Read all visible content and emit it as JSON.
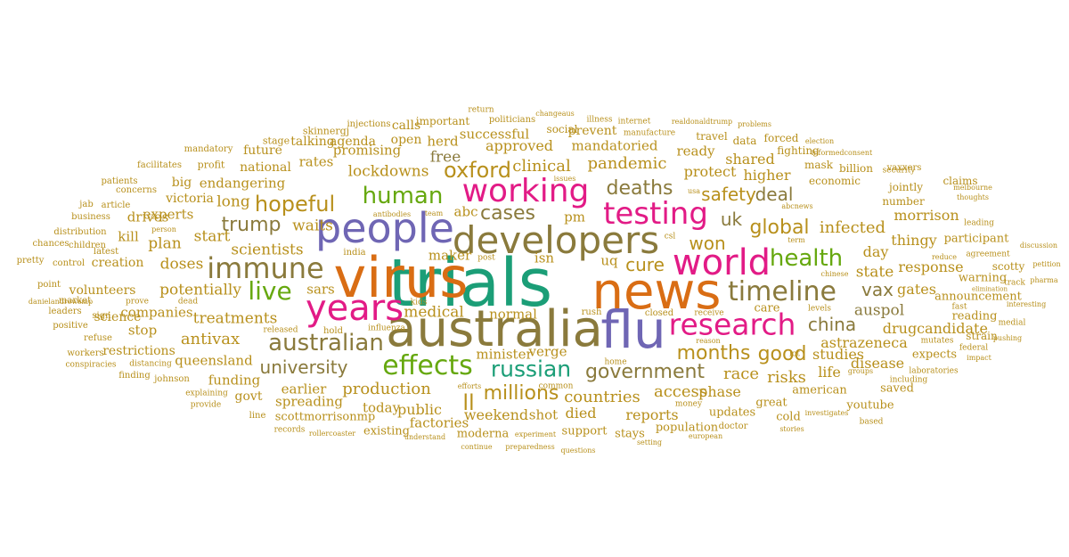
{
  "colors": {
    "background": "#ffffff",
    "gold": "#b8901c",
    "olive": "#8a7a3c",
    "orange": "#d96d14",
    "green": "#66a80f",
    "teal": "#1b9e77",
    "purple": "#6f66b4",
    "magenta": "#e21b86",
    "gray": "#6e6e6e"
  },
  "words": [
    {
      "text": "trials",
      "color": "teal"
    },
    {
      "text": "virus",
      "color": "orange"
    },
    {
      "text": "australia",
      "color": "olive"
    },
    {
      "text": "news",
      "color": "orange"
    },
    {
      "text": "flu",
      "color": "purple"
    },
    {
      "text": "people",
      "color": "purple"
    },
    {
      "text": "developers",
      "color": "olive"
    },
    {
      "text": "world",
      "color": "magenta"
    },
    {
      "text": "years",
      "color": "magenta"
    },
    {
      "text": "working",
      "color": "magenta"
    },
    {
      "text": "testing",
      "color": "magenta"
    },
    {
      "text": "immune",
      "color": "olive"
    },
    {
      "text": "research",
      "color": "magenta"
    },
    {
      "text": "timeline",
      "color": "olive"
    },
    {
      "text": "effects",
      "color": "green"
    },
    {
      "text": "live",
      "color": "green"
    },
    {
      "text": "australian",
      "color": "olive"
    },
    {
      "text": "health",
      "color": "green"
    },
    {
      "text": "human",
      "color": "green"
    },
    {
      "text": "russian",
      "color": "teal"
    },
    {
      "text": "hopeful",
      "color": "gold"
    },
    {
      "text": "oxford",
      "color": "gold"
    },
    {
      "text": "government",
      "color": "olive"
    },
    {
      "text": "global",
      "color": "gold"
    },
    {
      "text": "trump",
      "color": "olive"
    },
    {
      "text": "months",
      "color": "gold"
    },
    {
      "text": "good",
      "color": "gold"
    },
    {
      "text": "deaths",
      "color": "olive"
    },
    {
      "text": "cases",
      "color": "olive"
    },
    {
      "text": "millions",
      "color": "gold"
    },
    {
      "text": "university",
      "color": "olive"
    },
    {
      "text": "uk",
      "color": "olive"
    },
    {
      "text": "deal",
      "color": "olive"
    },
    {
      "text": "won",
      "color": "gold"
    },
    {
      "text": "cure",
      "color": "gold"
    },
    {
      "text": "vax",
      "color": "olive"
    },
    {
      "text": "china",
      "color": "olive"
    },
    {
      "text": "safety",
      "color": "gold"
    },
    {
      "text": "pandemic",
      "color": "gold"
    },
    {
      "text": "risks",
      "color": "gold"
    },
    {
      "text": "race",
      "color": "gold"
    },
    {
      "text": "production",
      "color": "gold"
    },
    {
      "text": "countries",
      "color": "gold"
    },
    {
      "text": "clinical",
      "color": "gold"
    },
    {
      "text": "access",
      "color": "gold"
    },
    {
      "text": "antivax",
      "color": "gold"
    },
    {
      "text": "infected",
      "color": "gold"
    },
    {
      "text": "medical",
      "color": "gold"
    },
    {
      "text": "state",
      "color": "gold"
    },
    {
      "text": "auspol",
      "color": "olive"
    },
    {
      "text": "ll",
      "color": "gold"
    },
    {
      "text": "scientists",
      "color": "gold"
    },
    {
      "text": "waits",
      "color": "gold"
    },
    {
      "text": "doses",
      "color": "gold"
    },
    {
      "text": "treatments",
      "color": "gold"
    },
    {
      "text": "potentially",
      "color": "gold"
    },
    {
      "text": "start",
      "color": "gold"
    },
    {
      "text": "plan",
      "color": "gold"
    },
    {
      "text": "free",
      "color": "olive"
    },
    {
      "text": "long",
      "color": "gold"
    },
    {
      "text": "lockdowns",
      "color": "gold"
    },
    {
      "text": "protect",
      "color": "gold"
    },
    {
      "text": "approved",
      "color": "gold"
    },
    {
      "text": "shared",
      "color": "gold"
    },
    {
      "text": "higher",
      "color": "gold"
    },
    {
      "text": "day",
      "color": "gold"
    },
    {
      "text": "life",
      "color": "gold"
    },
    {
      "text": "studies",
      "color": "gold"
    },
    {
      "text": "public",
      "color": "gold"
    },
    {
      "text": "weekend",
      "color": "gold"
    },
    {
      "text": "died",
      "color": "gold"
    },
    {
      "text": "reports",
      "color": "gold"
    },
    {
      "text": "phase",
      "color": "gold"
    },
    {
      "text": "drug",
      "color": "gold"
    },
    {
      "text": "response",
      "color": "gold"
    },
    {
      "text": "gates",
      "color": "gold"
    },
    {
      "text": "morrison",
      "color": "gold"
    },
    {
      "text": "thingy",
      "color": "gold"
    },
    {
      "text": "disease",
      "color": "gold"
    },
    {
      "text": "candidate",
      "color": "gold"
    },
    {
      "text": "astrazeneca",
      "color": "gold"
    },
    {
      "text": "queensland",
      "color": "gold"
    },
    {
      "text": "rates",
      "color": "gold"
    },
    {
      "text": "herd",
      "color": "gold"
    },
    {
      "text": "promising",
      "color": "gold"
    },
    {
      "text": "kill",
      "color": "gold"
    },
    {
      "text": "experts",
      "color": "gold"
    },
    {
      "text": "drives",
      "color": "gold"
    },
    {
      "text": "endangering",
      "color": "gold"
    },
    {
      "text": "maker",
      "color": "gold"
    },
    {
      "text": "earlier",
      "color": "gold"
    },
    {
      "text": "today",
      "color": "gold"
    },
    {
      "text": "shot",
      "color": "gold"
    },
    {
      "text": "stop",
      "color": "gold"
    },
    {
      "text": "funding",
      "color": "gold"
    },
    {
      "text": "spreading",
      "color": "gold"
    },
    {
      "text": "factories",
      "color": "gold"
    },
    {
      "text": "uq",
      "color": "gold"
    },
    {
      "text": "isn",
      "color": "gold"
    },
    {
      "text": "abc",
      "color": "gold"
    },
    {
      "text": "pm",
      "color": "gold"
    },
    {
      "text": "sars",
      "color": "gold"
    },
    {
      "text": "verge",
      "color": "gold"
    },
    {
      "text": "minister",
      "color": "gold"
    },
    {
      "text": "normal",
      "color": "gold"
    },
    {
      "text": "companies",
      "color": "gold"
    },
    {
      "text": "ready",
      "color": "gold"
    },
    {
      "text": "mandatoried",
      "color": "gold"
    },
    {
      "text": "successful",
      "color": "gold"
    },
    {
      "text": "prevent",
      "color": "gold"
    },
    {
      "text": "open",
      "color": "gold"
    },
    {
      "text": "calls",
      "color": "gold"
    },
    {
      "text": "agenda",
      "color": "gold"
    },
    {
      "text": "talking",
      "color": "gold"
    },
    {
      "text": "national",
      "color": "gold"
    },
    {
      "text": "future",
      "color": "gold"
    },
    {
      "text": "big",
      "color": "gold"
    },
    {
      "text": "victoria",
      "color": "gold"
    },
    {
      "text": "science",
      "color": "gold"
    },
    {
      "text": "creation",
      "color": "gold"
    },
    {
      "text": "volunteers",
      "color": "gold"
    },
    {
      "text": "restrictions",
      "color": "gold"
    },
    {
      "text": "govt",
      "color": "gold"
    },
    {
      "text": "scottmorrisonmp",
      "color": "gold"
    },
    {
      "text": "moderna",
      "color": "gold"
    },
    {
      "text": "existing",
      "color": "gold"
    },
    {
      "text": "support",
      "color": "gold"
    },
    {
      "text": "stays",
      "color": "gold"
    },
    {
      "text": "population",
      "color": "gold"
    },
    {
      "text": "updates",
      "color": "gold"
    },
    {
      "text": "great",
      "color": "gold"
    },
    {
      "text": "cold",
      "color": "gold"
    },
    {
      "text": "care",
      "color": "gold"
    },
    {
      "text": "american",
      "color": "gold"
    },
    {
      "text": "youtube",
      "color": "gold"
    },
    {
      "text": "saved",
      "color": "gold"
    },
    {
      "text": "expects",
      "color": "gold"
    },
    {
      "text": "warning",
      "color": "gold"
    },
    {
      "text": "announcement",
      "color": "gold"
    },
    {
      "text": "reading",
      "color": "gold"
    },
    {
      "text": "participant",
      "color": "gold"
    },
    {
      "text": "scotty",
      "color": "gold"
    },
    {
      "text": "strain",
      "color": "gold"
    },
    {
      "text": "claims",
      "color": "gold"
    },
    {
      "text": "jointly",
      "color": "gold"
    },
    {
      "text": "number",
      "color": "gold"
    },
    {
      "text": "economic",
      "color": "gold"
    },
    {
      "text": "billion",
      "color": "gold"
    },
    {
      "text": "mask",
      "color": "gold"
    },
    {
      "text": "fighting",
      "color": "gold"
    },
    {
      "text": "forced",
      "color": "gold"
    },
    {
      "text": "data",
      "color": "gold"
    },
    {
      "text": "travel",
      "color": "gold"
    },
    {
      "text": "social",
      "color": "gold"
    },
    {
      "text": "important",
      "color": "gold"
    },
    {
      "text": "injections",
      "color": "gold"
    },
    {
      "text": "skinnergj",
      "color": "gold"
    },
    {
      "text": "stage",
      "color": "gold"
    },
    {
      "text": "mandatory",
      "color": "gold"
    },
    {
      "text": "profit",
      "color": "gold"
    },
    {
      "text": "facilitates",
      "color": "gold"
    },
    {
      "text": "patients",
      "color": "gold"
    },
    {
      "text": "concerns",
      "color": "gold"
    },
    {
      "text": "jab",
      "color": "gold"
    },
    {
      "text": "article",
      "color": "gold"
    },
    {
      "text": "business",
      "color": "gold"
    },
    {
      "text": "distribution",
      "color": "gold"
    },
    {
      "text": "children",
      "color": "gold"
    },
    {
      "text": "chances",
      "color": "gold"
    },
    {
      "text": "latest",
      "color": "gold"
    },
    {
      "text": "pretty",
      "color": "gold"
    },
    {
      "text": "control",
      "color": "gold"
    },
    {
      "text": "point",
      "color": "gold"
    },
    {
      "text": "market",
      "color": "gold"
    },
    {
      "text": "sign",
      "color": "gold"
    },
    {
      "text": "leaders",
      "color": "gold"
    },
    {
      "text": "positive",
      "color": "gold"
    },
    {
      "text": "refuse",
      "color": "gold"
    },
    {
      "text": "workers",
      "color": "gold"
    },
    {
      "text": "conspiracies",
      "color": "gold"
    },
    {
      "text": "finding",
      "color": "gold"
    },
    {
      "text": "johnson",
      "color": "gold"
    },
    {
      "text": "explaining",
      "color": "gold"
    },
    {
      "text": "provide",
      "color": "gold"
    },
    {
      "text": "line",
      "color": "gold"
    },
    {
      "text": "records",
      "color": "gold"
    },
    {
      "text": "rollercoaster",
      "color": "gold"
    },
    {
      "text": "understand",
      "color": "gold"
    },
    {
      "text": "continue",
      "color": "gold"
    },
    {
      "text": "preparedness",
      "color": "gold"
    },
    {
      "text": "questions",
      "color": "gold"
    },
    {
      "text": "experiment",
      "color": "gold"
    },
    {
      "text": "setting",
      "color": "gold"
    },
    {
      "text": "european",
      "color": "gold"
    },
    {
      "text": "doctor",
      "color": "gold"
    },
    {
      "text": "stories",
      "color": "gold"
    },
    {
      "text": "investigates",
      "color": "gold"
    },
    {
      "text": "based",
      "color": "gold"
    },
    {
      "text": "including",
      "color": "gold"
    },
    {
      "text": "laboratories",
      "color": "gold"
    },
    {
      "text": "impact",
      "color": "gold"
    },
    {
      "text": "federal",
      "color": "gold"
    },
    {
      "text": "pushing",
      "color": "gold"
    },
    {
      "text": "medial",
      "color": "gold"
    },
    {
      "text": "interesting",
      "color": "gold"
    },
    {
      "text": "pharma",
      "color": "gold"
    },
    {
      "text": "petition",
      "color": "gold"
    },
    {
      "text": "discussion",
      "color": "gold"
    },
    {
      "text": "track",
      "color": "gold"
    },
    {
      "text": "elimination",
      "color": "gold"
    },
    {
      "text": "chinese",
      "color": "gold"
    },
    {
      "text": "agreement",
      "color": "gold"
    },
    {
      "text": "reduce",
      "color": "gold"
    },
    {
      "text": "fast",
      "color": "gold"
    },
    {
      "text": "leading",
      "color": "gold"
    },
    {
      "text": "thoughts",
      "color": "gold"
    },
    {
      "text": "melbourne",
      "color": "gold"
    },
    {
      "text": "vaxxers",
      "color": "gold"
    },
    {
      "text": "security",
      "color": "gold"
    },
    {
      "text": "informedconsent",
      "color": "gold"
    },
    {
      "text": "election",
      "color": "gold"
    },
    {
      "text": "problems",
      "color": "gold"
    },
    {
      "text": "realdonaldtrump",
      "color": "gold"
    },
    {
      "text": "internet",
      "color": "gold"
    },
    {
      "text": "manufacture",
      "color": "gold"
    },
    {
      "text": "illness",
      "color": "gold"
    },
    {
      "text": "changeaus",
      "color": "gold"
    },
    {
      "text": "politicians",
      "color": "gold"
    },
    {
      "text": "return",
      "color": "gold"
    },
    {
      "text": "issues",
      "color": "gold"
    },
    {
      "text": "antibodies",
      "color": "gold"
    },
    {
      "text": "team",
      "color": "gold"
    },
    {
      "text": "person",
      "color": "gold"
    },
    {
      "text": "prove",
      "color": "gold"
    },
    {
      "text": "dead",
      "color": "gold"
    },
    {
      "text": "distancing",
      "color": "gold"
    },
    {
      "text": "danielandrewsmp",
      "color": "gold"
    },
    {
      "text": "kids",
      "color": "gold"
    },
    {
      "text": "hold",
      "color": "gold"
    },
    {
      "text": "released",
      "color": "gold"
    },
    {
      "text": "influenza",
      "color": "gold"
    },
    {
      "text": "india",
      "color": "gold"
    },
    {
      "text": "post",
      "color": "gold"
    },
    {
      "text": "csl",
      "color": "gold"
    },
    {
      "text": "term",
      "color": "gold"
    },
    {
      "text": "usa",
      "color": "gold"
    },
    {
      "text": "abcnews",
      "color": "gold"
    },
    {
      "text": "closed",
      "color": "gold"
    },
    {
      "text": "rush",
      "color": "gold"
    },
    {
      "text": "receive",
      "color": "gold"
    },
    {
      "text": "reason",
      "color": "gold"
    },
    {
      "text": "money",
      "color": "gold"
    },
    {
      "text": "home",
      "color": "gold"
    },
    {
      "text": "efforts",
      "color": "gold"
    },
    {
      "text": "common",
      "color": "gold"
    },
    {
      "text": "lot",
      "color": "gold"
    },
    {
      "text": "levels",
      "color": "gold"
    },
    {
      "text": "groups",
      "color": "gold"
    },
    {
      "text": "mutates",
      "color": "gold"
    }
  ]
}
